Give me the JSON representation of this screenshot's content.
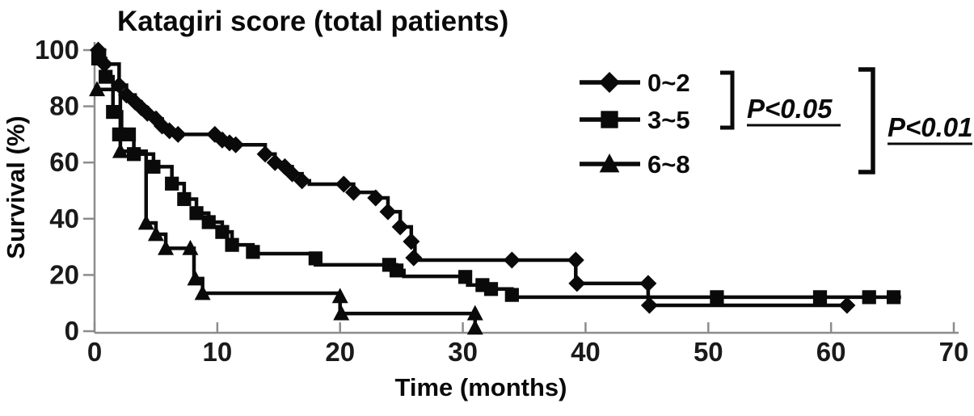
{
  "chart_data": {
    "type": "line",
    "subtype": "kaplan_meier_step",
    "title": "Katagiri score (total patients)",
    "xlabel": "Time (months)",
    "ylabel": "Survival (%)",
    "xlim": [
      0,
      70
    ],
    "ylim": [
      0,
      100
    ],
    "x_ticks": [
      0,
      10,
      20,
      30,
      40,
      50,
      60,
      70
    ],
    "y_ticks": [
      0,
      20,
      40,
      60,
      80,
      100
    ],
    "grid": false,
    "legend_position": "upper right",
    "line_color": "#0a0a0a",
    "axis_color": "#8c8c8c",
    "series": [
      {
        "name": "0~2",
        "marker": "diamond",
        "color": "#0a0a0a",
        "steps": [
          [
            0,
            100
          ],
          [
            0.8,
            95
          ],
          [
            2,
            87.5
          ],
          [
            2.6,
            84
          ],
          [
            3.3,
            81.5
          ],
          [
            3.8,
            79.5
          ],
          [
            4.3,
            77.5
          ],
          [
            5,
            75.5
          ],
          [
            5.5,
            73
          ],
          [
            6.1,
            71.3
          ],
          [
            6.8,
            70
          ],
          [
            10.4,
            68
          ],
          [
            11,
            67
          ],
          [
            11.5,
            66.3
          ],
          [
            13.9,
            63
          ],
          [
            14.7,
            60
          ],
          [
            15.5,
            58.5
          ],
          [
            16.1,
            56
          ],
          [
            16.9,
            53.5
          ],
          [
            17.5,
            52.3
          ],
          [
            21.1,
            49.4
          ],
          [
            22.9,
            47.4
          ],
          [
            23.9,
            42.5
          ],
          [
            24.9,
            37.1
          ],
          [
            25.8,
            31.9
          ],
          [
            26.1,
            25.3
          ],
          [
            39.2,
            17
          ],
          [
            45.1,
            9.2
          ],
          [
            61.5,
            9.2
          ]
        ],
        "marker_points": [
          [
            0.3,
            100
          ],
          [
            0.8,
            95
          ],
          [
            2,
            87.5
          ],
          [
            2.6,
            84
          ],
          [
            3.3,
            81.5
          ],
          [
            3.8,
            79.5
          ],
          [
            4.3,
            77.5
          ],
          [
            5,
            75.5
          ],
          [
            5.5,
            73
          ],
          [
            6.1,
            71.3
          ],
          [
            6.8,
            70
          ],
          [
            9.8,
            70
          ],
          [
            10.4,
            68
          ],
          [
            11,
            67
          ],
          [
            11.5,
            66.3
          ],
          [
            13.9,
            63
          ],
          [
            14.7,
            60
          ],
          [
            15.5,
            58.5
          ],
          [
            16.1,
            56
          ],
          [
            16.9,
            53.5
          ],
          [
            20.3,
            52.3
          ],
          [
            21.1,
            49.4
          ],
          [
            22.9,
            47.4
          ],
          [
            23.9,
            42.5
          ],
          [
            24.9,
            37.1
          ],
          [
            25.8,
            31.9
          ],
          [
            26,
            26.1
          ],
          [
            34,
            25.3
          ],
          [
            39.2,
            25.3
          ],
          [
            39.3,
            17
          ],
          [
            45.1,
            17
          ],
          [
            45.2,
            9.2
          ],
          [
            61.3,
            9.2
          ]
        ]
      },
      {
        "name": "3~5",
        "marker": "square",
        "color": "#0a0a0a",
        "steps": [
          [
            0,
            97
          ],
          [
            0.9,
            90.5
          ],
          [
            1.5,
            78
          ],
          [
            2.2,
            70
          ],
          [
            3.2,
            63
          ],
          [
            4.8,
            58.5
          ],
          [
            6.3,
            52.5
          ],
          [
            7.3,
            47
          ],
          [
            8.3,
            42
          ],
          [
            9.3,
            38.8
          ],
          [
            10.4,
            35.3
          ],
          [
            11.2,
            30.7
          ],
          [
            12.9,
            27.6
          ],
          [
            18,
            23.6
          ],
          [
            24.6,
            21.6
          ],
          [
            25.2,
            19.5
          ],
          [
            30.4,
            16.4
          ],
          [
            32.3,
            15
          ],
          [
            34,
            12.1
          ],
          [
            65.7,
            12.1
          ]
        ],
        "marker_points": [
          [
            0.3,
            97
          ],
          [
            0.9,
            90.5
          ],
          [
            1.5,
            78
          ],
          [
            2,
            70
          ],
          [
            2.8,
            70
          ],
          [
            3.2,
            63
          ],
          [
            4.8,
            58.5
          ],
          [
            6.3,
            52.5
          ],
          [
            7.3,
            47
          ],
          [
            8.3,
            42
          ],
          [
            9.3,
            38.8
          ],
          [
            10.4,
            35.3
          ],
          [
            11.2,
            30.7
          ],
          [
            12.9,
            28.2
          ],
          [
            18,
            25.9
          ],
          [
            24,
            23.6
          ],
          [
            24.6,
            21.6
          ],
          [
            30.2,
            19.3
          ],
          [
            31.6,
            16.4
          ],
          [
            32.3,
            15
          ],
          [
            34,
            12.9
          ],
          [
            50.7,
            12.1
          ],
          [
            59.1,
            12.1
          ],
          [
            63.1,
            12.1
          ],
          [
            65.1,
            12.1
          ]
        ]
      },
      {
        "name": "6~8",
        "marker": "triangle",
        "color": "#0a0a0a",
        "steps": [
          [
            0,
            86
          ],
          [
            2.1,
            64
          ],
          [
            4.2,
            38.5
          ],
          [
            5,
            34.5
          ],
          [
            5.8,
            29.5
          ],
          [
            8.1,
            18.7
          ],
          [
            8.8,
            13.5
          ],
          [
            20,
            6.3
          ],
          [
            31,
            0
          ]
        ],
        "marker_points": [
          [
            0.2,
            86
          ],
          [
            2.1,
            64
          ],
          [
            4.2,
            38.5
          ],
          [
            5,
            34.5
          ],
          [
            5.8,
            29.5
          ],
          [
            7.8,
            29.5
          ],
          [
            8.2,
            18.7
          ],
          [
            8.8,
            13.5
          ],
          [
            20,
            12.4
          ],
          [
            20.1,
            6.3
          ],
          [
            31,
            6.3
          ],
          [
            31,
            1.2
          ]
        ]
      }
    ],
    "annotations": [
      {
        "text": "P<0.05",
        "between": [
          "0~2",
          "3~5"
        ]
      },
      {
        "text": "P<0.01",
        "between": [
          "0~2",
          "3~5",
          "6~8"
        ]
      }
    ]
  }
}
